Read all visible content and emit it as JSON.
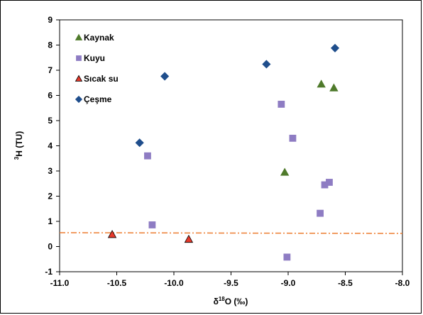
{
  "chart_data": {
    "type": "scatter",
    "title": "",
    "xlabel_parts": [
      "δ",
      "18",
      "O (‰)"
    ],
    "ylabel_parts": [
      "3",
      "H (TU)"
    ],
    "xlim": [
      -11.0,
      -8.0
    ],
    "ylim": [
      -1,
      9
    ],
    "x_ticks": [
      -11.0,
      -10.5,
      -10.0,
      -9.5,
      -9.0,
      -8.5,
      -8.0
    ],
    "x_tick_labels": [
      "-11.0",
      "-10.5",
      "-10.0",
      "-9.5",
      "-9.0",
      "-8.5",
      "-8.0"
    ],
    "y_ticks": [
      -1,
      0,
      1,
      2,
      3,
      4,
      5,
      6,
      7,
      8,
      9
    ],
    "y_tick_labels": [
      "-1",
      "0",
      "1",
      "2",
      "3",
      "4",
      "5",
      "6",
      "7",
      "8",
      "9"
    ],
    "grid": false,
    "legend_position": "top-left",
    "series": [
      {
        "name": "Kaynak",
        "marker": "triangle",
        "color": "#4f7a2b",
        "stroke": "#4f7a2b",
        "points": [
          {
            "x": -8.71,
            "y": 6.45
          },
          {
            "x": -8.6,
            "y": 6.3
          },
          {
            "x": -9.03,
            "y": 2.95
          }
        ]
      },
      {
        "name": "Kuyu",
        "marker": "square",
        "color": "#8e7cc3",
        "stroke": "#8e7cc3",
        "points": [
          {
            "x": -9.06,
            "y": 5.65
          },
          {
            "x": -8.96,
            "y": 4.3
          },
          {
            "x": -10.23,
            "y": 3.6
          },
          {
            "x": -8.64,
            "y": 2.55
          },
          {
            "x": -8.68,
            "y": 2.45
          },
          {
            "x": -8.72,
            "y": 1.32
          },
          {
            "x": -10.19,
            "y": 0.86
          },
          {
            "x": -9.01,
            "y": -0.42
          }
        ]
      },
      {
        "name": "Sıcak su",
        "marker": "triangle",
        "color": "#e8392b",
        "stroke": "#000000",
        "points": [
          {
            "x": -10.54,
            "y": 0.48
          },
          {
            "x": -9.87,
            "y": 0.29
          }
        ]
      },
      {
        "name": "Çeşme",
        "marker": "diamond",
        "color": "#1f4e8c",
        "stroke": "#1f4e8c",
        "points": [
          {
            "x": -8.59,
            "y": 7.88
          },
          {
            "x": -9.19,
            "y": 7.24
          },
          {
            "x": -10.08,
            "y": 6.76
          },
          {
            "x": -10.3,
            "y": 4.12
          }
        ]
      }
    ],
    "reference_line": {
      "style": "dash-dot",
      "color": "#ed7d31",
      "points": [
        {
          "x": -11.0,
          "y": 0.55
        },
        {
          "x": -8.0,
          "y": 0.52
        }
      ]
    }
  }
}
